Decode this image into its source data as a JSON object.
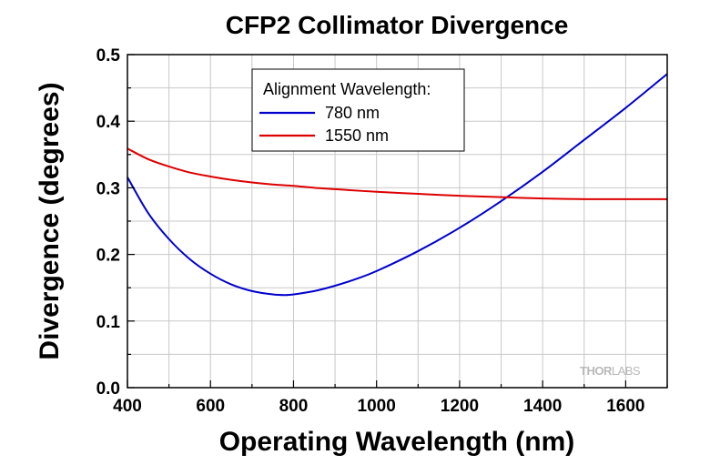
{
  "chart_data": {
    "type": "line",
    "title": "CFP2 Collimator Divergence",
    "xlabel": "Operating Wavelength (nm)",
    "ylabel": "Divergence (degrees)",
    "xlim": [
      400,
      1700
    ],
    "ylim": [
      0.0,
      0.5
    ],
    "x_ticks": [
      400,
      600,
      800,
      1000,
      1200,
      1400,
      1600
    ],
    "x_tick_labels": [
      "400",
      "600",
      "800",
      "1000",
      "1200",
      "1400",
      "1600"
    ],
    "y_ticks": [
      0.0,
      0.1,
      0.2,
      0.3,
      0.4,
      0.5
    ],
    "y_tick_labels": [
      "0.0",
      "0.1",
      "0.2",
      "0.3",
      "0.4",
      "0.5"
    ],
    "grid": true,
    "legend": {
      "title": "Alignment Wavelength:",
      "placement": "top-center"
    },
    "series": [
      {
        "name": "780 nm",
        "color": "#0000cc",
        "x": [
          400,
          450,
          500,
          550,
          600,
          650,
          700,
          750,
          780,
          800,
          850,
          900,
          950,
          1000,
          1100,
          1200,
          1300,
          1400,
          1500,
          1600,
          1700
        ],
        "y": [
          0.316,
          0.262,
          0.223,
          0.193,
          0.171,
          0.155,
          0.145,
          0.14,
          0.139,
          0.14,
          0.145,
          0.153,
          0.163,
          0.175,
          0.205,
          0.24,
          0.28,
          0.324,
          0.372,
          0.42,
          0.471
        ]
      },
      {
        "name": "1550 nm",
        "color": "#dd0000",
        "x": [
          400,
          450,
          500,
          550,
          600,
          650,
          700,
          750,
          800,
          850,
          900,
          1000,
          1100,
          1200,
          1300,
          1400,
          1500,
          1600,
          1700
        ],
        "y": [
          0.359,
          0.343,
          0.332,
          0.323,
          0.317,
          0.312,
          0.308,
          0.305,
          0.303,
          0.3,
          0.298,
          0.294,
          0.291,
          0.288,
          0.286,
          0.284,
          0.283,
          0.283,
          0.283
        ]
      }
    ]
  },
  "watermark": {
    "brand_left": "THOR",
    "brand_right": "LABS"
  },
  "colors": {
    "grid": "#c8c8c8",
    "axis": "#000000",
    "watermark": "#b9b9b9"
  }
}
